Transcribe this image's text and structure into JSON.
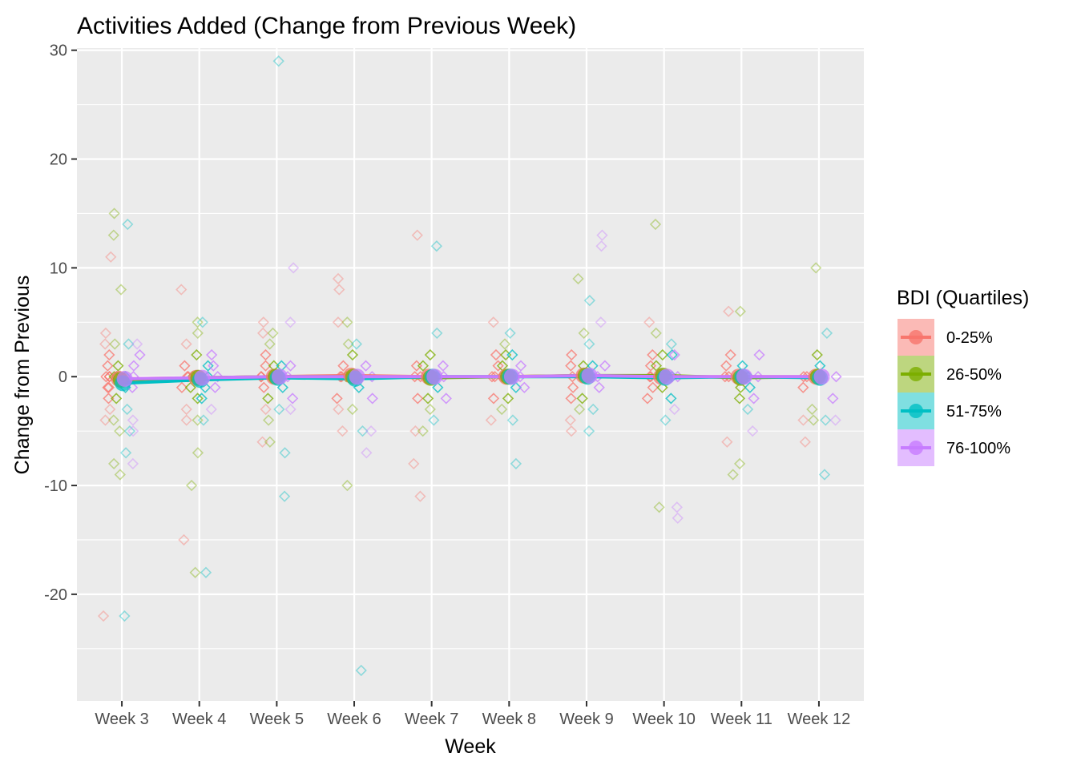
{
  "chart_data": {
    "type": "scatter",
    "title": "Activities Added (Change from Previous Week)",
    "xlabel": "Week",
    "ylabel": "Change from Previous",
    "ylim": [
      -29.8,
      30.2
    ],
    "y_ticks": [
      -20,
      -10,
      0,
      10,
      20,
      30
    ],
    "grid": true,
    "legend": {
      "title": "BDI (Quartiles)",
      "placement": "right"
    },
    "categories": [
      "Week 3",
      "Week 4",
      "Week 5",
      "Week 6",
      "Week 7",
      "Week 8",
      "Week 9",
      "Week 10",
      "Week 11",
      "Week 12"
    ],
    "series": [
      {
        "name": "0-25%",
        "color": "#F8766D",
        "mean": [
          -0.2,
          -0.1,
          0.0,
          0.1,
          0.0,
          0.0,
          0.1,
          0.0,
          0.0,
          0.0
        ],
        "points": [
          [
            -22,
            11,
            4,
            3,
            2,
            1,
            0,
            0,
            0,
            -1,
            -1,
            -2,
            -3,
            -4
          ],
          [
            -15,
            -4,
            -3,
            8,
            3,
            1,
            0,
            0,
            -1
          ],
          [
            -6,
            -3,
            -1,
            5,
            4,
            2,
            1,
            0,
            0
          ],
          [
            -5,
            -3,
            -2,
            9,
            8,
            5,
            1,
            0,
            0
          ],
          [
            -11,
            -8,
            -5,
            -2,
            13,
            1,
            0,
            0
          ],
          [
            -4,
            -2,
            5,
            2,
            1,
            0,
            0
          ],
          [
            -5,
            -4,
            -2,
            2,
            1,
            0,
            -1
          ],
          [
            -2,
            -1,
            5,
            2,
            1,
            0,
            0
          ],
          [
            -6,
            6,
            2,
            1,
            0,
            0
          ],
          [
            -6,
            -4,
            -1,
            0,
            0
          ]
        ]
      },
      {
        "name": "26-50%",
        "color": "#7CAE00",
        "mean": [
          -0.3,
          -0.1,
          0.0,
          0.0,
          -0.1,
          0.0,
          0.1,
          0.1,
          -0.1,
          0.0
        ],
        "points": [
          [
            -9,
            -8,
            -5,
            -4,
            -2,
            15,
            13,
            8,
            3,
            1,
            0,
            0
          ],
          [
            -18,
            -10,
            -7,
            -4,
            -2,
            5,
            4,
            2,
            0,
            -1
          ],
          [
            -6,
            -4,
            -2,
            4,
            3,
            1,
            0,
            0
          ],
          [
            -10,
            -3,
            5,
            3,
            2,
            0,
            0
          ],
          [
            -5,
            -3,
            -2,
            2,
            1,
            0
          ],
          [
            -3,
            -2,
            3,
            2,
            1,
            0
          ],
          [
            -3,
            -2,
            9,
            4,
            1,
            0
          ],
          [
            -12,
            14,
            4,
            2,
            1,
            0,
            -1
          ],
          [
            -9,
            -8,
            -2,
            -1,
            6,
            0
          ],
          [
            -4,
            -3,
            10,
            2,
            0
          ]
        ]
      },
      {
        "name": "51-75%",
        "color": "#00BFC4",
        "mean": [
          -0.6,
          -0.3,
          -0.1,
          -0.2,
          0.0,
          0.0,
          0.0,
          -0.1,
          0.0,
          -0.1
        ],
        "points": [
          [
            -22,
            -7,
            -5,
            -3,
            -1,
            14,
            3,
            0
          ],
          [
            -18,
            -4,
            -2,
            5,
            1,
            0,
            -1
          ],
          [
            -11,
            -7,
            -3,
            -1,
            29,
            1,
            0
          ],
          [
            -27,
            -5,
            -1,
            3,
            0
          ],
          [
            -4,
            -1,
            12,
            4,
            0
          ],
          [
            -8,
            -4,
            -1,
            4,
            2,
            0
          ],
          [
            -5,
            -3,
            7,
            3,
            1,
            0
          ],
          [
            -4,
            -2,
            3,
            2,
            0
          ],
          [
            -3,
            -1,
            1,
            0
          ],
          [
            -9,
            -4,
            4,
            1,
            0
          ]
        ]
      },
      {
        "name": "76-100%",
        "color": "#C77CFF",
        "mean": [
          -0.2,
          -0.1,
          0.0,
          0.0,
          0.0,
          0.0,
          0.1,
          0.0,
          0.0,
          0.0
        ],
        "points": [
          [
            -8,
            -5,
            -4,
            -1,
            3,
            2,
            1,
            0
          ],
          [
            -3,
            -1,
            2,
            1,
            0
          ],
          [
            -3,
            -2,
            10,
            5,
            1,
            0
          ],
          [
            -7,
            -5,
            -2,
            1,
            0
          ],
          [
            -2,
            1,
            0
          ],
          [
            -1,
            1,
            0
          ],
          [
            -1,
            13,
            12,
            5,
            1,
            0
          ],
          [
            -13,
            -12,
            -3,
            2,
            0
          ],
          [
            -5,
            -2,
            2,
            0
          ],
          [
            -4,
            -2,
            0
          ]
        ]
      }
    ]
  }
}
